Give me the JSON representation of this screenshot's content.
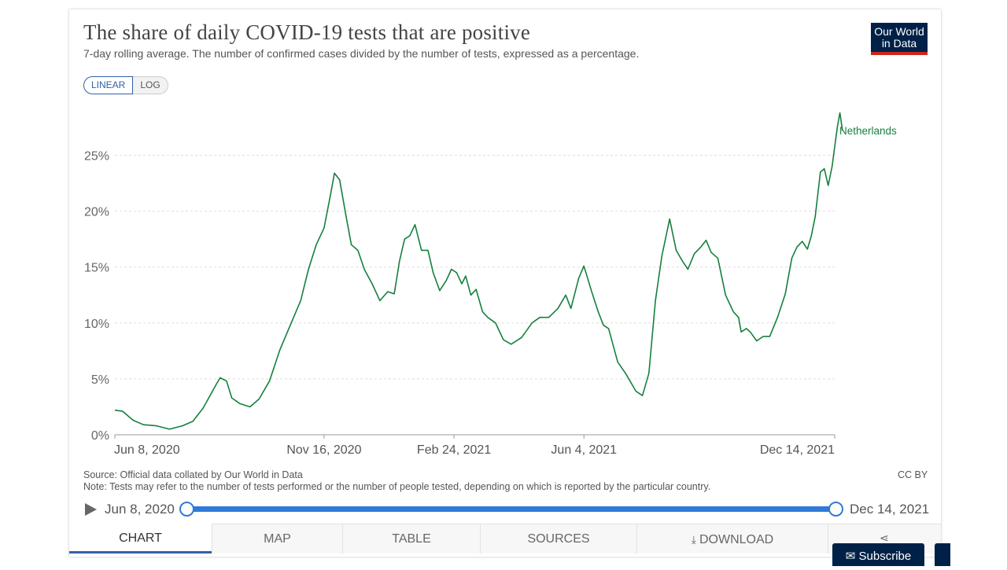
{
  "header": {
    "title": "The share of daily COVID-19 tests that are positive",
    "subtitle": "7-day rolling average. The number of confirmed cases divided by the number of tests, expressed as a percentage.",
    "logo_line1": "Our World",
    "logo_line2": "in Data"
  },
  "scale_toggle": {
    "linear_label": "LINEAR",
    "log_label": "LOG",
    "selected": "LINEAR"
  },
  "footer": {
    "source": "Source: Official data collated by Our World in Data",
    "note": "Note: Tests may refer to the number of tests performed or the number of people tested, depending on which is reported by the particular country.",
    "license": "CC BY"
  },
  "timeline": {
    "start_label": "Jun 8, 2020",
    "end_label": "Dec 14, 2021"
  },
  "tabs": [
    "CHART",
    "MAP",
    "TABLE",
    "SOURCES",
    "DOWNLOAD"
  ],
  "subscribe_label": "Subscribe",
  "icons": {
    "play": "play-icon",
    "download": "download-icon",
    "share": "share-icon",
    "subscribe": "envelope-icon"
  },
  "colors": {
    "series": "#15803d",
    "accent": "#2f7ad8",
    "brand": "#002147",
    "brand_red": "#ce261e"
  },
  "chart_data": {
    "type": "line",
    "title": "The share of daily COVID-19 tests that are positive",
    "subtitle": "7-day rolling average. The number of confirmed cases divided by the number of tests, expressed as a percentage.",
    "xlabel": "",
    "ylabel": "",
    "ylim": [
      0,
      30
    ],
    "yticks": [
      0,
      5,
      10,
      15,
      20,
      25
    ],
    "ytick_labels": [
      "0%",
      "5%",
      "10%",
      "15%",
      "20%",
      "25%"
    ],
    "xlim": [
      "2020-06-08",
      "2021-12-14"
    ],
    "xticks": [
      "2020-06-08",
      "2020-11-16",
      "2021-02-24",
      "2021-06-04",
      "2021-12-14"
    ],
    "xtick_labels": [
      "Jun 8, 2020",
      "Nov 16, 2020",
      "Feb 24, 2021",
      "Jun 4, 2021",
      "Dec 14, 2021"
    ],
    "grid": "horizontal dashed",
    "series": [
      {
        "name": "Netherlands",
        "color": "#15803d",
        "points": [
          [
            "2020-06-08",
            2.2
          ],
          [
            "2020-06-14",
            2.1
          ],
          [
            "2020-06-22",
            1.3
          ],
          [
            "2020-06-30",
            0.9
          ],
          [
            "2020-07-10",
            0.8
          ],
          [
            "2020-07-20",
            0.5
          ],
          [
            "2020-07-30",
            0.8
          ],
          [
            "2020-08-07",
            1.2
          ],
          [
            "2020-08-15",
            2.4
          ],
          [
            "2020-08-25",
            4.5
          ],
          [
            "2020-08-28",
            5.1
          ],
          [
            "2020-09-02",
            4.8
          ],
          [
            "2020-09-06",
            3.3
          ],
          [
            "2020-09-12",
            2.8
          ],
          [
            "2020-09-20",
            2.5
          ],
          [
            "2020-09-27",
            3.2
          ],
          [
            "2020-10-05",
            4.8
          ],
          [
            "2020-10-13",
            7.6
          ],
          [
            "2020-10-21",
            9.8
          ],
          [
            "2020-10-29",
            12.0
          ],
          [
            "2020-11-04",
            14.8
          ],
          [
            "2020-11-10",
            17.0
          ],
          [
            "2020-11-16",
            18.5
          ],
          [
            "2020-11-21",
            21.5
          ],
          [
            "2020-11-24",
            23.4
          ],
          [
            "2020-11-28",
            22.8
          ],
          [
            "2020-12-03",
            19.5
          ],
          [
            "2020-12-07",
            17.0
          ],
          [
            "2020-12-12",
            16.5
          ],
          [
            "2020-12-17",
            14.8
          ],
          [
            "2020-12-23",
            13.5
          ],
          [
            "2020-12-29",
            12.0
          ],
          [
            "2021-01-04",
            12.8
          ],
          [
            "2021-01-09",
            12.6
          ],
          [
            "2021-01-13",
            15.5
          ],
          [
            "2021-01-17",
            17.5
          ],
          [
            "2021-01-21",
            17.8
          ],
          [
            "2021-01-25",
            18.8
          ],
          [
            "2021-01-30",
            16.5
          ],
          [
            "2021-02-04",
            16.5
          ],
          [
            "2021-02-08",
            14.5
          ],
          [
            "2021-02-13",
            12.9
          ],
          [
            "2021-02-18",
            13.8
          ],
          [
            "2021-02-22",
            14.8
          ],
          [
            "2021-02-26",
            14.5
          ],
          [
            "2021-03-02",
            13.5
          ],
          [
            "2021-03-05",
            14.2
          ],
          [
            "2021-03-09",
            12.5
          ],
          [
            "2021-03-13",
            13.0
          ],
          [
            "2021-03-18",
            11.0
          ],
          [
            "2021-03-22",
            10.5
          ],
          [
            "2021-03-28",
            10.0
          ],
          [
            "2021-04-03",
            8.5
          ],
          [
            "2021-04-09",
            8.1
          ],
          [
            "2021-04-17",
            8.7
          ],
          [
            "2021-04-25",
            10.0
          ],
          [
            "2021-05-01",
            10.5
          ],
          [
            "2021-05-08",
            10.5
          ],
          [
            "2021-05-15",
            11.3
          ],
          [
            "2021-05-21",
            12.5
          ],
          [
            "2021-05-25",
            11.3
          ],
          [
            "2021-05-31",
            14.0
          ],
          [
            "2021-06-04",
            15.1
          ],
          [
            "2021-06-10",
            12.8
          ],
          [
            "2021-06-15",
            11.0
          ],
          [
            "2021-06-19",
            9.8
          ],
          [
            "2021-06-23",
            9.5
          ],
          [
            "2021-06-30",
            6.5
          ],
          [
            "2021-07-06",
            5.5
          ],
          [
            "2021-07-14",
            3.9
          ],
          [
            "2021-07-19",
            3.5
          ],
          [
            "2021-07-24",
            5.5
          ],
          [
            "2021-07-29",
            12.0
          ],
          [
            "2021-08-03",
            16.0
          ],
          [
            "2021-08-09",
            19.3
          ],
          [
            "2021-08-14",
            16.5
          ],
          [
            "2021-08-19",
            15.5
          ],
          [
            "2021-08-23",
            14.8
          ],
          [
            "2021-08-28",
            16.2
          ],
          [
            "2021-09-02",
            16.8
          ],
          [
            "2021-09-06",
            17.4
          ],
          [
            "2021-09-10",
            16.3
          ],
          [
            "2021-09-15",
            15.8
          ],
          [
            "2021-09-21",
            12.5
          ],
          [
            "2021-09-27",
            11.0
          ],
          [
            "2021-10-01",
            10.5
          ],
          [
            "2021-10-03",
            9.2
          ],
          [
            "2021-10-07",
            9.5
          ],
          [
            "2021-10-10",
            9.2
          ],
          [
            "2021-10-15",
            8.4
          ],
          [
            "2021-10-20",
            8.8
          ],
          [
            "2021-10-25",
            8.8
          ],
          [
            "2021-10-31",
            10.5
          ],
          [
            "2021-11-06",
            12.6
          ],
          [
            "2021-11-11",
            15.8
          ],
          [
            "2021-11-15",
            16.8
          ],
          [
            "2021-11-19",
            17.3
          ],
          [
            "2021-11-23",
            16.6
          ],
          [
            "2021-11-26",
            17.8
          ],
          [
            "2021-11-29",
            19.5
          ],
          [
            "2021-12-03",
            23.5
          ],
          [
            "2021-12-06",
            23.8
          ],
          [
            "2021-12-09",
            22.3
          ],
          [
            "2021-12-12",
            24.0
          ],
          [
            "2021-12-16",
            27.5
          ],
          [
            "2021-12-18",
            28.8
          ],
          [
            "2021-12-20",
            27.2
          ]
        ]
      }
    ],
    "legend": "inline label at line end (right)"
  }
}
